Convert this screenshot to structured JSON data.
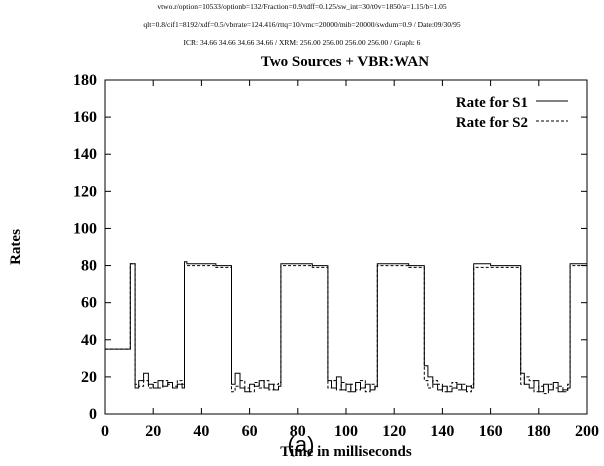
{
  "header": {
    "line1": "vtwo.r/option=10533/optionb=132/Fraction=0.9/tdff=0.125/sw_int=30/t0v=1850/a=1.15/b=1.05",
    "line2": "qlt=0.8/cif1=8192/xdf=0.5/vbrrate=124.416/rttq=10/vmc=20000/mib=20000/swdum=0.9 / Date:09/30/95",
    "line3": "ICR: 34.66 34.66 34.66 34.66 / XRM: 256.00 256.00 256.00 256.00 / Graph: 6"
  },
  "caption": "(a)",
  "chart_data": {
    "type": "line",
    "title": "Two Sources + VBR:WAN",
    "xlabel": "Time in milliseconds",
    "ylabel": "Rates",
    "xlim": [
      0,
      200
    ],
    "ylim": [
      0,
      180
    ],
    "xticks": [
      "0",
      "20",
      "40",
      "60",
      "80",
      "100",
      "120",
      "140",
      "160",
      "180",
      "200"
    ],
    "yticks": [
      "0",
      "20",
      "40",
      "60",
      "80",
      "100",
      "120",
      "140",
      "160",
      "180"
    ],
    "legend_position": "top-right",
    "grid": false,
    "series": [
      {
        "name": "Rate for S1",
        "style": "solid",
        "x": [
          0,
          10,
          10.5,
          12,
          12.5,
          14,
          16,
          18,
          20,
          22,
          24,
          26,
          28,
          30,
          32,
          33,
          34,
          40,
          46,
          52,
          52.5,
          54,
          56,
          58,
          60,
          62,
          64,
          66,
          68,
          70,
          72,
          73,
          74,
          80,
          86,
          92,
          92.5,
          94,
          96,
          98,
          100,
          102,
          104,
          106,
          108,
          110,
          112,
          113,
          114,
          120,
          126,
          132,
          132.5,
          134,
          136,
          138,
          140,
          142,
          144,
          146,
          148,
          150,
          152,
          153,
          154,
          160,
          166,
          172,
          172.5,
          174,
          176,
          178,
          180,
          182,
          184,
          186,
          188,
          190,
          192,
          193,
          194,
          200
        ],
        "values": [
          35,
          35,
          81,
          81,
          14,
          18,
          22,
          16,
          14,
          18,
          15,
          17,
          14,
          16,
          14,
          82,
          81,
          81,
          80,
          80,
          16,
          22,
          14,
          12,
          16,
          15,
          18,
          14,
          16,
          13,
          15,
          81,
          81,
          81,
          80,
          80,
          18,
          14,
          20,
          13,
          16,
          12,
          17,
          14,
          16,
          13,
          15,
          81,
          81,
          81,
          80,
          80,
          26,
          20,
          16,
          13,
          15,
          12,
          14,
          16,
          13,
          15,
          14,
          81,
          81,
          80,
          80,
          80,
          22,
          16,
          14,
          18,
          12,
          16,
          13,
          17,
          12,
          13,
          14,
          81,
          81,
          81
        ]
      },
      {
        "name": "Rate for S2",
        "style": "dashed",
        "x": [
          0,
          10,
          10.5,
          12,
          12.5,
          14,
          16,
          18,
          20,
          22,
          24,
          26,
          28,
          30,
          32,
          33,
          34,
          40,
          46,
          52,
          52.5,
          54,
          56,
          58,
          60,
          62,
          64,
          66,
          68,
          70,
          72,
          73,
          74,
          80,
          86,
          92,
          92.5,
          94,
          96,
          98,
          100,
          102,
          104,
          106,
          108,
          110,
          112,
          113,
          114,
          120,
          126,
          132,
          132.5,
          134,
          136,
          138,
          140,
          142,
          144,
          146,
          148,
          150,
          152,
          153,
          154,
          160,
          166,
          172,
          172.5,
          174,
          176,
          178,
          180,
          182,
          184,
          186,
          188,
          190,
          192,
          193,
          194,
          200
        ],
        "values": [
          35,
          35,
          81,
          81,
          16,
          15,
          18,
          14,
          17,
          14,
          18,
          16,
          15,
          18,
          16,
          80,
          80,
          80,
          79,
          79,
          12,
          15,
          18,
          14,
          12,
          17,
          14,
          18,
          13,
          16,
          17,
          80,
          80,
          80,
          79,
          79,
          14,
          18,
          13,
          17,
          12,
          16,
          13,
          18,
          12,
          16,
          14,
          80,
          80,
          80,
          79,
          79,
          18,
          14,
          18,
          16,
          12,
          15,
          17,
          13,
          16,
          12,
          16,
          79,
          79,
          79,
          79,
          79,
          16,
          20,
          18,
          12,
          15,
          11,
          16,
          14,
          15,
          12,
          16,
          80,
          80,
          80
        ]
      }
    ]
  }
}
